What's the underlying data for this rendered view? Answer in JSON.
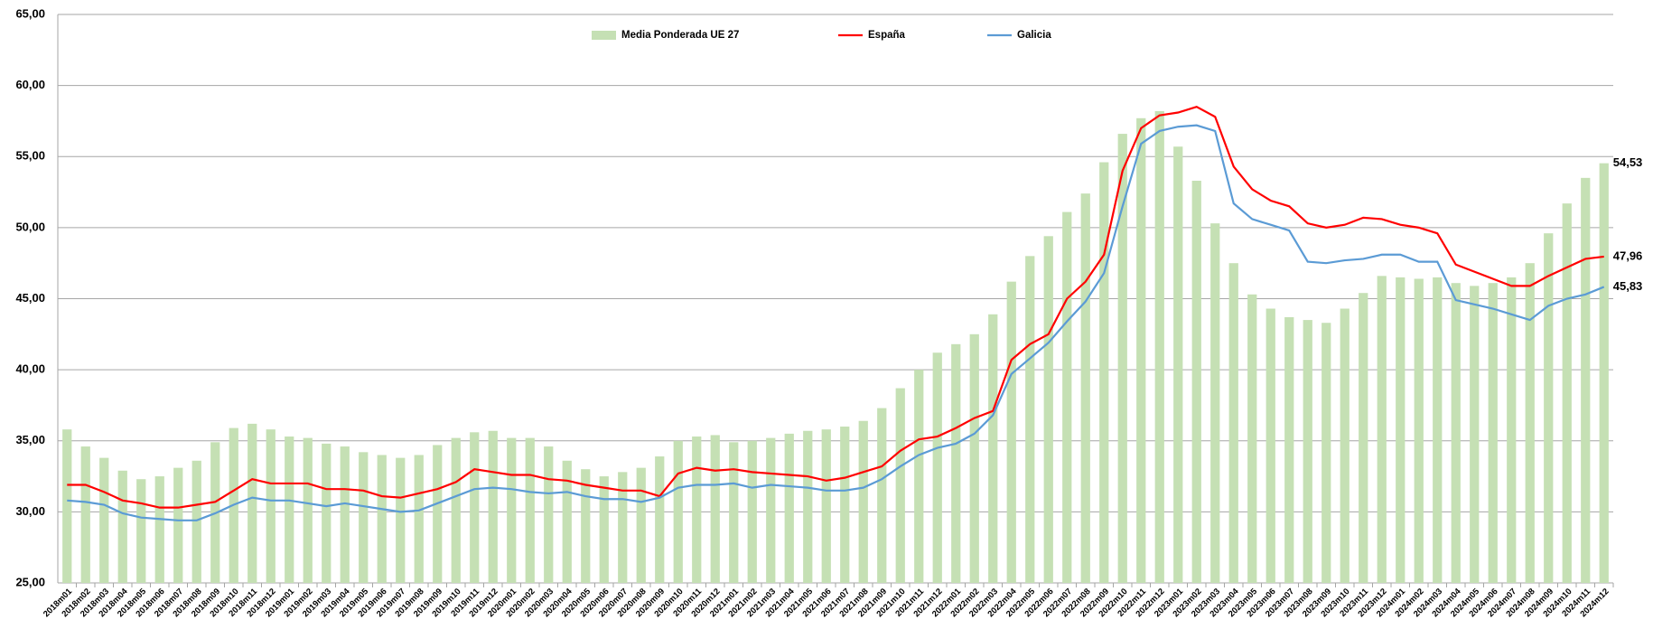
{
  "chart_data": {
    "type": "bar_line",
    "categories": [
      "2018m01",
      "2018m02",
      "2018m03",
      "2018m04",
      "2018m05",
      "2018m06",
      "2018m07",
      "2018m08",
      "2018m09",
      "2018m10",
      "2018m11",
      "2018m12",
      "2019m01",
      "2019m02",
      "2019m03",
      "2019m04",
      "2019m05",
      "2019m06",
      "2019m07",
      "2019m08",
      "2019m09",
      "2019m10",
      "2019m11",
      "2019m12",
      "2020m01",
      "2020m02",
      "2020m03",
      "2020m04",
      "2020m05",
      "2020m06",
      "2020m07",
      "2020m08",
      "2020m09",
      "2020m10",
      "2020m11",
      "2020m12",
      "2021m01",
      "2021m02",
      "2021m03",
      "2021m04",
      "2021m05",
      "2021m06",
      "2021m07",
      "2021m08",
      "2021m09",
      "2021m10",
      "2021m11",
      "2021m12",
      "2022m01",
      "2022m02",
      "2022m03",
      "2022m04",
      "2022m05",
      "2022m06",
      "2022m07",
      "2022m08",
      "2022m09",
      "2022m10",
      "2022m11",
      "2022m12",
      "2023m01",
      "2023m02",
      "2023m03",
      "2023m04",
      "2023m05",
      "2023m06",
      "2023m07",
      "2023m08",
      "2023m09",
      "2023m10",
      "2023m11",
      "2023m12",
      "2024m01",
      "2024m02",
      "2024m03",
      "2024m04",
      "2024m05",
      "2024m06",
      "2024m07",
      "2024m08",
      "2024m09",
      "2024m10",
      "2024m11",
      "2024m12"
    ],
    "series": [
      {
        "name": "Media Ponderada UE 27",
        "kind": "bar",
        "color": "#c5e0b4",
        "label_color": "#548235",
        "values": [
          35.8,
          34.6,
          33.8,
          32.9,
          32.3,
          32.5,
          33.1,
          33.6,
          34.9,
          35.9,
          36.2,
          35.8,
          35.3,
          35.2,
          34.8,
          34.6,
          34.2,
          34.0,
          33.8,
          34.0,
          34.7,
          35.2,
          35.6,
          35.7,
          35.2,
          35.2,
          34.6,
          33.6,
          33.0,
          32.5,
          32.8,
          33.1,
          33.9,
          35.0,
          35.3,
          35.4,
          34.9,
          35.0,
          35.2,
          35.5,
          35.7,
          35.8,
          36.0,
          36.4,
          37.3,
          38.7,
          40.0,
          41.2,
          41.8,
          42.5,
          43.9,
          46.2,
          48.0,
          49.4,
          51.1,
          52.4,
          54.6,
          56.6,
          57.7,
          58.2,
          55.7,
          53.3,
          50.3,
          47.5,
          45.3,
          44.3,
          43.7,
          43.5,
          43.3,
          44.3,
          45.4,
          46.6,
          46.5,
          46.4,
          46.5,
          46.1,
          45.9,
          46.1,
          46.5,
          47.5,
          49.6,
          51.7,
          53.5,
          54.53
        ],
        "value_labels": [
          null,
          null,
          null,
          null,
          null,
          null,
          null,
          null,
          null,
          null,
          null,
          null,
          null,
          null,
          null,
          null,
          null,
          null,
          null,
          null,
          null,
          null,
          null,
          null,
          null,
          null,
          null,
          null,
          null,
          null,
          null,
          null,
          null,
          null,
          null,
          null,
          null,
          null,
          null,
          null,
          null,
          null,
          null,
          null,
          null,
          null,
          null,
          null,
          null,
          null,
          null,
          null,
          null,
          null,
          null,
          null,
          null,
          null,
          null,
          null,
          null,
          null,
          null,
          null,
          null,
          null,
          null,
          null,
          null,
          null,
          null,
          null,
          null,
          null,
          null,
          null,
          null,
          null,
          null,
          null,
          null,
          null,
          null,
          "54,53"
        ]
      },
      {
        "name": "España",
        "kind": "line",
        "color": "#ff0000",
        "label_color": "#ff0000",
        "values": [
          31.9,
          31.9,
          31.4,
          30.8,
          30.6,
          30.3,
          30.3,
          30.5,
          30.7,
          31.5,
          32.3,
          32.0,
          32.0,
          32.0,
          31.6,
          31.6,
          31.5,
          31.1,
          31.0,
          31.3,
          31.6,
          32.1,
          33.0,
          32.8,
          32.6,
          32.6,
          32.3,
          32.2,
          31.9,
          31.7,
          31.5,
          31.5,
          31.1,
          32.7,
          33.1,
          32.9,
          33.0,
          32.8,
          32.7,
          32.6,
          32.5,
          32.2,
          32.4,
          32.8,
          33.2,
          34.3,
          35.1,
          35.3,
          35.9,
          36.6,
          37.1,
          40.7,
          41.8,
          42.5,
          45.0,
          46.2,
          48.1,
          54.0,
          57.0,
          57.9,
          58.1,
          58.5,
          57.8,
          54.3,
          52.7,
          51.9,
          51.5,
          50.3,
          50.0,
          50.2,
          50.7,
          50.6,
          50.2,
          50.0,
          49.6,
          47.4,
          46.9,
          46.4,
          45.9,
          45.9,
          46.6,
          47.2,
          47.8,
          47.96
        ],
        "value_labels": [
          null,
          null,
          null,
          null,
          null,
          null,
          null,
          null,
          null,
          null,
          null,
          null,
          null,
          null,
          null,
          null,
          null,
          null,
          null,
          null,
          null,
          null,
          null,
          null,
          null,
          null,
          null,
          null,
          null,
          null,
          null,
          null,
          null,
          null,
          null,
          null,
          null,
          null,
          null,
          null,
          null,
          null,
          null,
          null,
          null,
          null,
          null,
          null,
          null,
          null,
          null,
          null,
          null,
          null,
          null,
          null,
          null,
          null,
          null,
          null,
          null,
          null,
          null,
          null,
          null,
          null,
          null,
          null,
          null,
          null,
          null,
          null,
          null,
          null,
          null,
          null,
          null,
          null,
          null,
          null,
          null,
          null,
          null,
          "47,96"
        ]
      },
      {
        "name": "Galicia",
        "kind": "line",
        "color": "#5b9bd5",
        "label_color": "#2e75b6",
        "values": [
          30.8,
          30.7,
          30.5,
          29.9,
          29.6,
          29.5,
          29.4,
          29.4,
          29.9,
          30.5,
          31.0,
          30.8,
          30.8,
          30.6,
          30.4,
          30.6,
          30.4,
          30.2,
          30.0,
          30.1,
          30.6,
          31.1,
          31.6,
          31.7,
          31.6,
          31.4,
          31.3,
          31.4,
          31.1,
          30.9,
          30.9,
          30.7,
          31.0,
          31.7,
          31.9,
          31.9,
          32.0,
          31.7,
          31.9,
          31.8,
          31.7,
          31.5,
          31.5,
          31.7,
          32.3,
          33.2,
          34.0,
          34.5,
          34.8,
          35.5,
          36.8,
          39.7,
          40.8,
          41.9,
          43.4,
          44.8,
          46.8,
          51.5,
          55.9,
          56.8,
          57.1,
          57.2,
          56.8,
          51.7,
          50.6,
          50.2,
          49.8,
          47.6,
          47.5,
          47.7,
          47.8,
          48.1,
          48.1,
          47.6,
          47.6,
          44.9,
          44.6,
          44.3,
          43.9,
          43.5,
          44.5,
          45.0,
          45.3,
          45.83
        ],
        "value_labels": [
          null,
          null,
          null,
          null,
          null,
          null,
          null,
          null,
          null,
          null,
          null,
          null,
          null,
          null,
          null,
          null,
          null,
          null,
          null,
          null,
          null,
          null,
          null,
          null,
          null,
          null,
          null,
          null,
          null,
          null,
          null,
          null,
          null,
          null,
          null,
          null,
          null,
          null,
          null,
          null,
          null,
          null,
          null,
          null,
          null,
          null,
          null,
          null,
          null,
          null,
          null,
          null,
          null,
          null,
          null,
          null,
          null,
          null,
          null,
          null,
          null,
          null,
          null,
          null,
          null,
          null,
          null,
          null,
          null,
          null,
          null,
          null,
          null,
          null,
          null,
          null,
          null,
          null,
          null,
          null,
          null,
          null,
          null,
          "45,83"
        ]
      }
    ],
    "ylim": [
      25,
      65
    ],
    "yticks": [
      {
        "value": 25,
        "label": "25,00"
      },
      {
        "value": 30,
        "label": "30,00"
      },
      {
        "value": 35,
        "label": "35,00"
      },
      {
        "value": 40,
        "label": "40,00"
      },
      {
        "value": 45,
        "label": "45,00"
      },
      {
        "value": 50,
        "label": "50,00"
      },
      {
        "value": 55,
        "label": "55,00"
      },
      {
        "value": 60,
        "label": "60,00"
      },
      {
        "value": 65,
        "label": "65,00"
      }
    ],
    "grid": true,
    "legend": "top"
  }
}
